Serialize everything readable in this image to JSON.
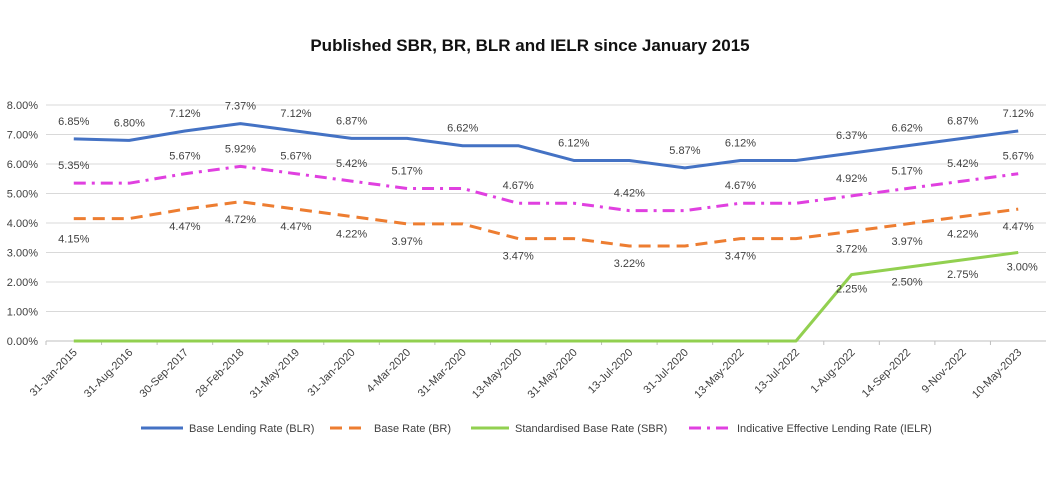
{
  "chart_data": {
    "type": "line",
    "title": "Published SBR, BR, BLR and IELR since January 2015",
    "xlabel": "",
    "ylabel": "",
    "ylim": [
      0,
      8
    ],
    "y_tick_labels": [
      "0.00%",
      "1.00%",
      "2.00%",
      "3.00%",
      "4.00%",
      "5.00%",
      "6.00%",
      "7.00%",
      "8.00%"
    ],
    "categories": [
      "31-Jan-2015",
      "31-Aug-2016",
      "30-Sep-2017",
      "28-Feb-2018",
      "31-May-2019",
      "31-Jan-2020",
      "4-Mar-2020",
      "31-Mar-2020",
      "13-May-2020",
      "31-May-2020",
      "13-Jul-2020",
      "31-Jul-2020",
      "13-May-2022",
      "13-Jul-2022",
      "1-Aug-2022",
      "14-Sep-2022",
      "9-Nov-2022",
      "10-May-2023"
    ],
    "grid": true,
    "legend_position": "bottom",
    "series": [
      {
        "name": "Base Lending Rate (BLR)",
        "color": "#4472c4",
        "style": "solid",
        "values": [
          6.85,
          6.8,
          7.12,
          7.37,
          7.12,
          6.87,
          6.87,
          6.62,
          6.62,
          6.12,
          6.12,
          5.87,
          6.12,
          6.12,
          6.37,
          6.62,
          6.87,
          7.12
        ],
        "labels": [
          "6.85%",
          "6.80%",
          "7.12%",
          "7.37%",
          "7.12%",
          "6.87%",
          null,
          "6.62%",
          null,
          "6.12%",
          null,
          "5.87%",
          "6.12%",
          null,
          "6.37%",
          "6.62%",
          "6.87%",
          "7.12%"
        ]
      },
      {
        "name": "Base Rate (BR)",
        "color": "#ed7d31",
        "style": "dash",
        "values": [
          4.15,
          4.15,
          4.47,
          4.72,
          4.47,
          4.22,
          3.97,
          3.97,
          3.47,
          3.47,
          3.22,
          3.22,
          3.47,
          3.47,
          3.72,
          3.97,
          4.22,
          4.47
        ],
        "labels": [
          "4.15%",
          null,
          "4.47%",
          "4.72%",
          "4.47%",
          "4.22%",
          "3.97%",
          null,
          "3.47%",
          null,
          "3.22%",
          null,
          "3.47%",
          null,
          "3.72%",
          "3.97%",
          "4.22%",
          "4.47%"
        ]
      },
      {
        "name": "Standardised Base Rate (SBR)",
        "color": "#92d050",
        "style": "solid",
        "values": [
          0,
          0,
          0,
          0,
          0,
          0,
          0,
          0,
          0,
          0,
          0,
          0,
          0,
          0,
          2.25,
          2.5,
          2.75,
          3.0
        ],
        "labels": [
          null,
          null,
          null,
          null,
          null,
          null,
          null,
          null,
          null,
          null,
          null,
          null,
          null,
          null,
          "2.25%",
          "2.50%",
          "2.75%",
          "3.00%"
        ]
      },
      {
        "name": "Indicative Effective Lending Rate (IELR)",
        "color": "#e040e0",
        "style": "dashdot",
        "values": [
          5.35,
          5.35,
          5.67,
          5.92,
          5.67,
          5.42,
          5.17,
          5.17,
          4.67,
          4.67,
          4.42,
          4.42,
          4.67,
          4.67,
          4.92,
          5.17,
          5.42,
          5.67
        ],
        "labels": [
          "5.35%",
          null,
          "5.67%",
          "5.92%",
          "5.67%",
          "5.42%",
          "5.17%",
          null,
          "4.67%",
          null,
          "4.42%",
          null,
          "4.67%",
          null,
          "4.92%",
          "5.17%",
          "5.42%",
          "5.67%"
        ]
      }
    ]
  }
}
